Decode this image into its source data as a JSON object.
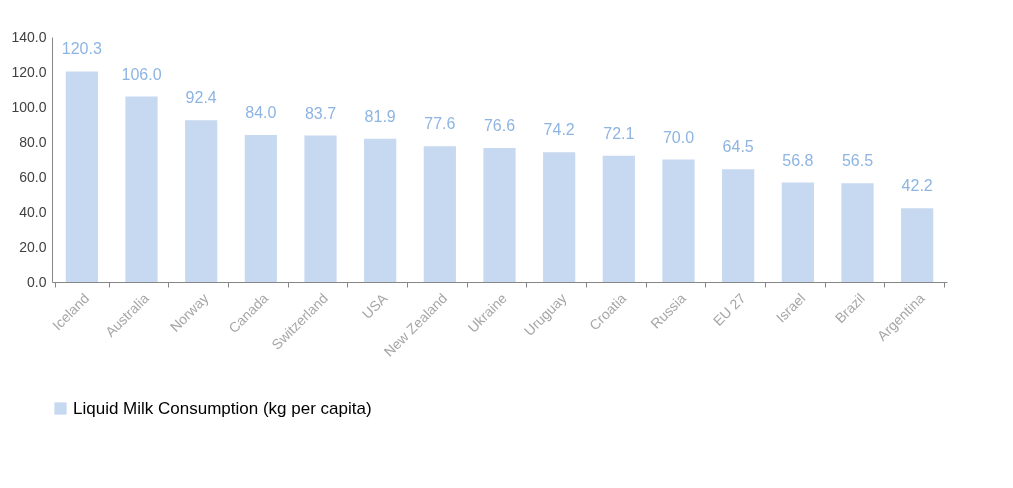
{
  "chart_data": {
    "type": "bar",
    "categories": [
      "Iceland",
      "Australia",
      "Norway",
      "Canada",
      "Switzerland",
      "USA",
      "New Zealand",
      "Ukraine",
      "Uruguay",
      "Croatia",
      "Russia",
      "EU 27",
      "Israel",
      "Brazil",
      "Argentina"
    ],
    "series": [
      {
        "name": "Liquid Milk Consumption (kg per capita)",
        "color": "#c6d9f1",
        "values": [
          120.3,
          106.0,
          92.4,
          84.0,
          83.7,
          81.9,
          77.6,
          76.6,
          74.2,
          72.1,
          70.0,
          64.5,
          56.8,
          56.5,
          42.2
        ]
      }
    ],
    "ylim": [
      0,
      140
    ],
    "yticks": [
      {
        "value": 0,
        "label": "0.0"
      },
      {
        "value": 20,
        "label": "20.0"
      },
      {
        "value": 40,
        "label": "40.0"
      },
      {
        "value": 60,
        "label": "60.0"
      },
      {
        "value": 80,
        "label": "80.0"
      },
      {
        "value": 100,
        "label": "100.0"
      },
      {
        "value": 120,
        "label": "120.0"
      },
      {
        "value": 140,
        "label": "140.0"
      }
    ],
    "value_labels": [
      "120.3",
      "106.0",
      "92.4",
      "84.0",
      "83.7",
      "81.9",
      "77.6",
      "76.6",
      "74.2",
      "72.1",
      "70.0",
      "64.5",
      "56.8",
      "56.5",
      "42.2"
    ],
    "grid": false,
    "legend": "bottom"
  }
}
